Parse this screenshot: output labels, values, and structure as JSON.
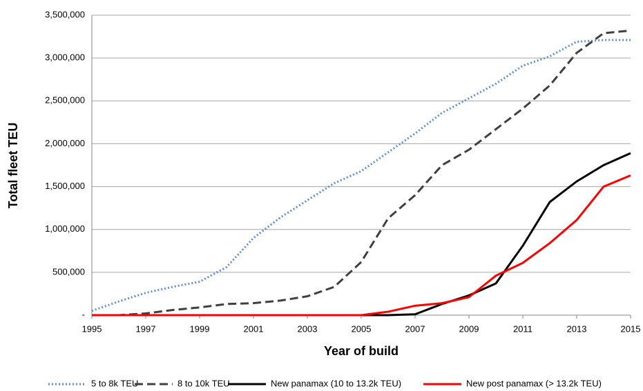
{
  "chart_data": {
    "type": "line",
    "x_label": "Year of build",
    "y_label": "Total fleet TEU",
    "x": [
      1995,
      1996,
      1997,
      1998,
      1999,
      2000,
      2001,
      2002,
      2003,
      2004,
      2005,
      2006,
      2007,
      2008,
      2009,
      2010,
      2011,
      2012,
      2013,
      2014,
      2015
    ],
    "xlim": [
      1995,
      2015
    ],
    "xticks": [
      1995,
      1997,
      1999,
      2001,
      2003,
      2005,
      2007,
      2009,
      2011,
      2013,
      2015
    ],
    "ylim": [
      0,
      3500000
    ],
    "yticks": [
      {
        "value": 0,
        "label": "-"
      },
      {
        "value": 500000,
        "label": "500,000"
      },
      {
        "value": 1000000,
        "label": "1,000,000"
      },
      {
        "value": 1500000,
        "label": "1,500,000"
      },
      {
        "value": 2000000,
        "label": "2,000,000"
      },
      {
        "value": 2500000,
        "label": "2,500,000"
      },
      {
        "value": 3000000,
        "label": "3,000,000"
      },
      {
        "value": 3500000,
        "label": "3,500,000"
      }
    ],
    "grid": true,
    "legend": "bottom",
    "series": [
      {
        "name": "5 to 8k TEU",
        "color": "#5b8ed6",
        "dash": "dotted",
        "values": [
          50000,
          160000,
          260000,
          330000,
          390000,
          560000,
          900000,
          1140000,
          1340000,
          1540000,
          1680000,
          1900000,
          2120000,
          2360000,
          2530000,
          2700000,
          2910000,
          3020000,
          3190000,
          3210000,
          3210000
        ]
      },
      {
        "name": "8 to 10k TEU",
        "color": "#3f3f3f",
        "dash": "dashed",
        "values": [
          0,
          0,
          20000,
          60000,
          90000,
          130000,
          140000,
          170000,
          220000,
          330000,
          620000,
          1130000,
          1400000,
          1750000,
          1930000,
          2170000,
          2410000,
          2680000,
          3060000,
          3290000,
          3320000
        ]
      },
      {
        "name": "New panamax (10 to 13.2k TEU)",
        "color": "#000000",
        "dash": "solid",
        "values": [
          0,
          0,
          0,
          0,
          0,
          0,
          0,
          0,
          0,
          0,
          0,
          0,
          10000,
          130000,
          230000,
          370000,
          810000,
          1320000,
          1560000,
          1750000,
          1890000
        ]
      },
      {
        "name": "New post panamax (> 13.2k TEU)",
        "color": "#ff0000",
        "dash": "solid",
        "values": [
          0,
          0,
          0,
          0,
          0,
          0,
          0,
          0,
          0,
          0,
          0,
          40000,
          110000,
          140000,
          210000,
          460000,
          610000,
          840000,
          1110000,
          1500000,
          1630000
        ]
      }
    ]
  }
}
